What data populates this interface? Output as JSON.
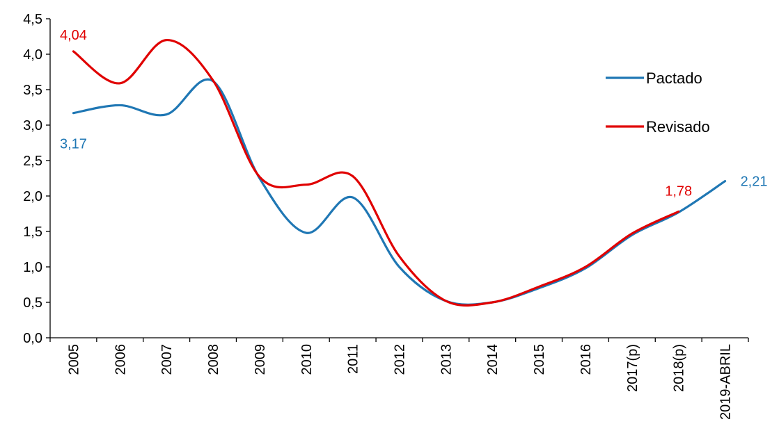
{
  "chart_data": {
    "type": "line",
    "categories": [
      "2005",
      "2006",
      "2007",
      "2008",
      "2009",
      "2010",
      "2011",
      "2012",
      "2013",
      "2014",
      "2015",
      "2016",
      "2017(p)",
      "2018(p)",
      "2019-ABRIL"
    ],
    "series": [
      {
        "name": "Pactado",
        "color": "#1F77B4",
        "values": [
          3.17,
          3.28,
          3.15,
          3.62,
          2.25,
          1.48,
          1.98,
          1.0,
          0.52,
          0.5,
          0.7,
          0.98,
          1.45,
          1.77,
          2.21
        ]
      },
      {
        "name": "Revisado",
        "color": "#E00000",
        "values": [
          4.04,
          3.59,
          4.2,
          3.63,
          2.27,
          2.16,
          2.28,
          1.15,
          0.52,
          0.5,
          0.72,
          1.0,
          1.47,
          1.78,
          null
        ]
      }
    ],
    "ylim": [
      0,
      4.5
    ],
    "yticks": [
      "0,0",
      "0,5",
      "1,0",
      "1,5",
      "2,0",
      "2,5",
      "3,0",
      "3,5",
      "4,0",
      "4,5"
    ],
    "grid": false,
    "legend_position": "right",
    "data_labels": [
      {
        "series": "Revisado",
        "category": "2005",
        "text": "4,04"
      },
      {
        "series": "Pactado",
        "category": "2005",
        "text": "3,17"
      },
      {
        "series": "Revisado",
        "category": "2018(p)",
        "text": "1,78"
      },
      {
        "series": "Pactado",
        "category": "2019-ABRIL",
        "text": "2,21"
      }
    ]
  }
}
